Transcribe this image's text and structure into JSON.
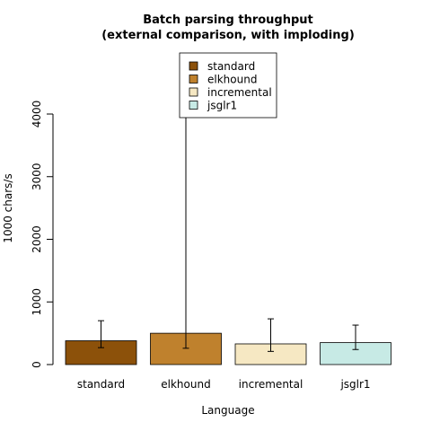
{
  "chart_data": {
    "type": "bar",
    "title": "Batch parsing throughput",
    "subtitle": "(external comparison, with imploding)",
    "xlabel": "Language",
    "ylabel": "1000 chars/s",
    "categories": [
      "standard",
      "elkhound",
      "incremental",
      "jsglr1"
    ],
    "values": [
      380,
      500,
      330,
      350
    ],
    "error_low": [
      270,
      260,
      210,
      240
    ],
    "error_high": [
      700,
      4950,
      730,
      630
    ],
    "ylim": [
      0,
      4900
    ],
    "yticks": [
      0,
      1000,
      2000,
      3000,
      4000
    ],
    "ytick_labels": [
      "0",
      "1000",
      "2000",
      "3000",
      "4000"
    ],
    "colors": [
      "#8c510a",
      "#bf812d",
      "#f6e8c3",
      "#c7eae5"
    ],
    "legend": {
      "placement": "top-center",
      "entries": [
        "standard",
        "elkhound",
        "incremental",
        "jsglr1"
      ]
    },
    "grid": false
  }
}
